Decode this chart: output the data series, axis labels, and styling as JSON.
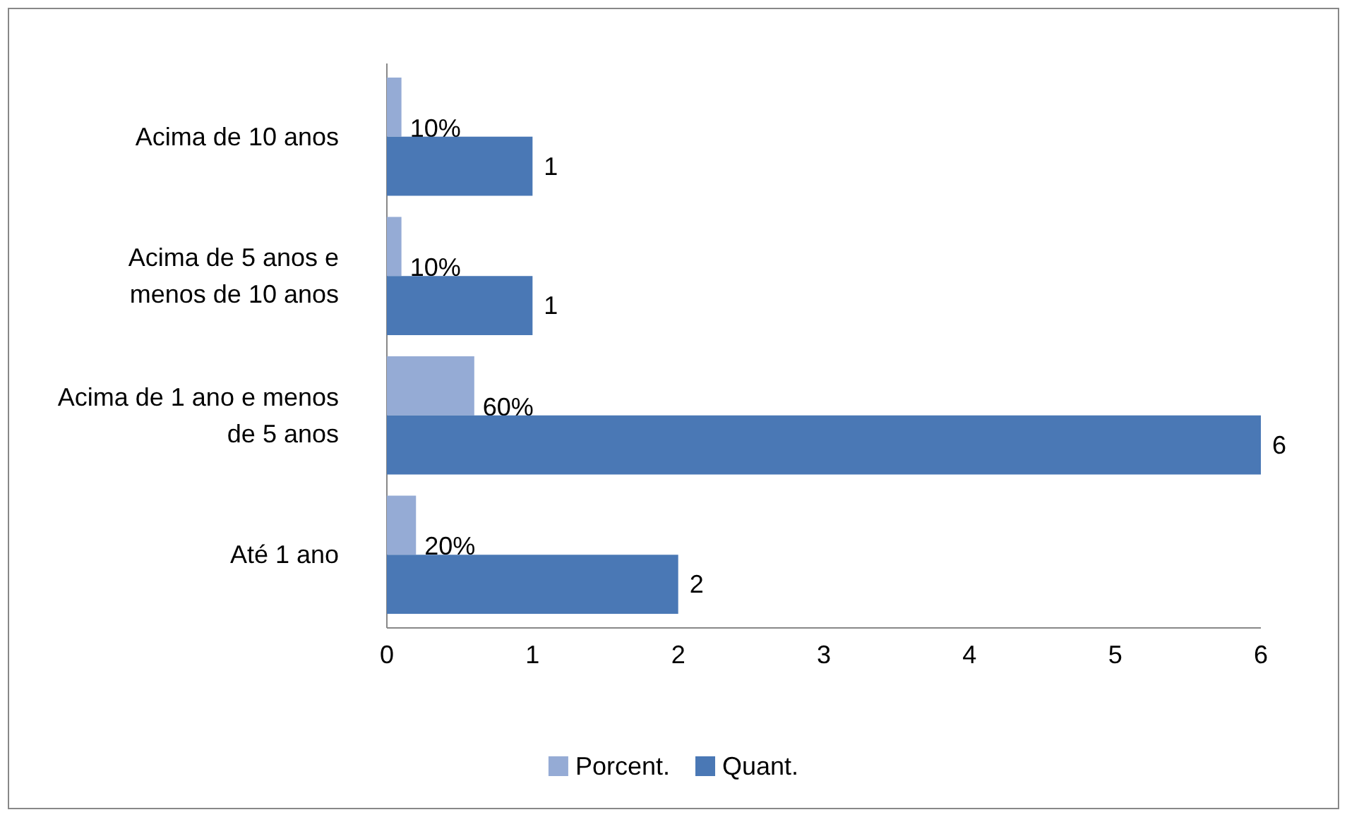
{
  "chart_data": {
    "type": "bar",
    "orientation": "horizontal",
    "categories": [
      "Acima de 10 anos",
      "Acima de 5 anos e menos de 10 anos",
      "Acima de 1 ano e menos de 5 anos",
      "Até 1 ano"
    ],
    "series": [
      {
        "name": "Porcent.",
        "color": "#95abd5",
        "values": [
          0.1,
          0.1,
          0.6,
          0.2
        ],
        "value_labels": [
          "10%",
          "10%",
          "60%",
          "20%"
        ]
      },
      {
        "name": "Quant.",
        "color": "#4a78b5",
        "values": [
          1,
          1,
          6,
          2
        ],
        "value_labels": [
          "1",
          "1",
          "6",
          "2"
        ]
      }
    ],
    "xlim": [
      0,
      6
    ],
    "xticks": [
      0,
      1,
      2,
      3,
      4,
      5,
      6
    ],
    "grid": false,
    "legend": "bottom"
  }
}
